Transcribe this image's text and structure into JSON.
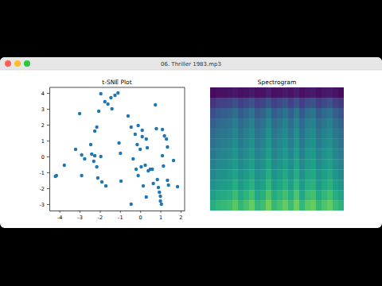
{
  "window": {
    "title": "06. Thriller 1983.mp3"
  },
  "chart_data": [
    {
      "type": "scatter",
      "title": "t-SNE Plot",
      "color": "#1f77b4",
      "marker": "circle",
      "xlim": [
        -4.5,
        2.2
      ],
      "ylim": [
        -3.4,
        4.35
      ],
      "xticks": [
        -4,
        -3,
        -2,
        -1,
        0,
        1,
        2
      ],
      "yticks": [
        -3,
        -2,
        -1,
        0,
        1,
        2,
        3,
        4
      ],
      "x": [
        -4.2,
        -4.15,
        -3.76,
        -3.2,
        -3.0,
        -2.9,
        -2.9,
        -2.75,
        -2.45,
        -2.4,
        -2.3,
        -2.25,
        -2.15,
        -2.25,
        -2.15,
        -2.1,
        -2.05,
        -1.95,
        -1.95,
        -1.9,
        -1.75,
        -1.7,
        -1.6,
        -1.45,
        -1.4,
        -1.25,
        -1.1,
        -1.05,
        -0.98,
        -0.95,
        -0.6,
        -0.45,
        -0.45,
        -0.35,
        -0.25,
        -0.2,
        -0.15,
        -0.1,
        -0.1,
        0,
        0.05,
        0.1,
        0.1,
        0.15,
        0.25,
        0.3,
        0.3,
        0.35,
        0.4,
        0.5,
        0.6,
        0.65,
        0.75,
        0.8,
        0.85,
        0.9,
        0.95,
        1.0,
        1.0,
        1.05,
        1.1,
        1.15,
        1.2,
        1.3,
        1.35,
        1.35,
        1.4,
        1.65,
        1.85,
        1.1
      ],
      "values": [
        -1.25,
        -1.2,
        -0.55,
        0.45,
        2.7,
        0.1,
        -1.2,
        -0.15,
        0.75,
        0.15,
        -0.3,
        1.6,
        1.85,
        0.05,
        -0.65,
        -1.35,
        2.85,
        3.95,
        0,
        -1.6,
        3.45,
        -1.85,
        3.3,
        3.7,
        3.0,
        3.85,
        4.0,
        0.85,
        0.2,
        -1.55,
        2.55,
        1.85,
        -3.0,
        -0.15,
        1.4,
        -0.8,
        0.75,
        1.95,
        -1.2,
        0.45,
        -0.65,
        1.65,
        1.25,
        -1.85,
        -0.55,
        1.1,
        -2.55,
        0.55,
        -0.9,
        -0.8,
        -0.8,
        -1.7,
        3.25,
        1.75,
        -1.45,
        -1.95,
        -2.25,
        -2.5,
        -2.8,
        -3.0,
        0.05,
        -0.6,
        1.3,
        1.1,
        0.6,
        -1.5,
        -1.8,
        -0.25,
        -1.9,
        1.7
      ]
    },
    {
      "type": "heatmap",
      "title": "Spectrogram",
      "color": "viridis",
      "tick_labels": false,
      "zlim": [
        0,
        1
      ],
      "cells": [
        [
          0.03,
          0.04,
          0.04,
          0.05,
          0.06,
          0.04,
          0.05,
          0.07,
          0.04,
          0.05,
          0.08,
          0.04,
          0.05,
          0.07,
          0.05,
          0.08,
          0.04,
          0.06,
          0.07,
          0.04,
          0.06,
          0.07,
          0.05,
          0.03
        ],
        [
          0.15,
          0.18,
          0.19,
          0.2,
          0.24,
          0.18,
          0.22,
          0.25,
          0.18,
          0.2,
          0.26,
          0.19,
          0.22,
          0.25,
          0.19,
          0.26,
          0.18,
          0.24,
          0.25,
          0.18,
          0.22,
          0.25,
          0.19,
          0.17
        ],
        [
          0.24,
          0.28,
          0.29,
          0.31,
          0.36,
          0.28,
          0.33,
          0.38,
          0.28,
          0.31,
          0.4,
          0.29,
          0.33,
          0.38,
          0.3,
          0.4,
          0.28,
          0.36,
          0.38,
          0.28,
          0.34,
          0.38,
          0.3,
          0.26
        ],
        [
          0.3,
          0.34,
          0.35,
          0.37,
          0.42,
          0.34,
          0.39,
          0.44,
          0.34,
          0.37,
          0.46,
          0.35,
          0.39,
          0.44,
          0.36,
          0.46,
          0.34,
          0.42,
          0.44,
          0.34,
          0.4,
          0.44,
          0.36,
          0.32
        ],
        [
          0.34,
          0.38,
          0.39,
          0.41,
          0.46,
          0.38,
          0.43,
          0.48,
          0.38,
          0.41,
          0.5,
          0.39,
          0.43,
          0.48,
          0.4,
          0.5,
          0.38,
          0.46,
          0.48,
          0.38,
          0.44,
          0.48,
          0.4,
          0.36
        ],
        [
          0.37,
          0.41,
          0.42,
          0.44,
          0.49,
          0.41,
          0.46,
          0.51,
          0.41,
          0.44,
          0.53,
          0.42,
          0.46,
          0.51,
          0.43,
          0.53,
          0.41,
          0.49,
          0.51,
          0.41,
          0.47,
          0.51,
          0.43,
          0.39
        ],
        [
          0.4,
          0.44,
          0.45,
          0.47,
          0.52,
          0.44,
          0.49,
          0.54,
          0.44,
          0.47,
          0.56,
          0.45,
          0.49,
          0.54,
          0.46,
          0.56,
          0.44,
          0.52,
          0.54,
          0.44,
          0.5,
          0.54,
          0.46,
          0.42
        ],
        [
          0.43,
          0.47,
          0.48,
          0.5,
          0.55,
          0.47,
          0.52,
          0.57,
          0.47,
          0.5,
          0.59,
          0.48,
          0.52,
          0.57,
          0.49,
          0.59,
          0.47,
          0.55,
          0.57,
          0.47,
          0.53,
          0.57,
          0.49,
          0.45
        ],
        [
          0.46,
          0.5,
          0.51,
          0.53,
          0.58,
          0.5,
          0.55,
          0.6,
          0.5,
          0.53,
          0.62,
          0.51,
          0.55,
          0.6,
          0.52,
          0.62,
          0.5,
          0.58,
          0.6,
          0.5,
          0.56,
          0.6,
          0.52,
          0.48
        ],
        [
          0.5,
          0.54,
          0.55,
          0.57,
          0.62,
          0.54,
          0.59,
          0.64,
          0.54,
          0.57,
          0.66,
          0.55,
          0.59,
          0.64,
          0.56,
          0.66,
          0.54,
          0.62,
          0.64,
          0.54,
          0.6,
          0.64,
          0.56,
          0.52
        ],
        [
          0.56,
          0.6,
          0.61,
          0.63,
          0.68,
          0.6,
          0.65,
          0.7,
          0.6,
          0.63,
          0.72,
          0.61,
          0.65,
          0.7,
          0.62,
          0.72,
          0.6,
          0.68,
          0.7,
          0.6,
          0.66,
          0.7,
          0.62,
          0.58
        ],
        [
          0.62,
          0.66,
          0.67,
          0.69,
          0.74,
          0.66,
          0.71,
          0.76,
          0.66,
          0.69,
          0.78,
          0.67,
          0.71,
          0.76,
          0.68,
          0.78,
          0.66,
          0.74,
          0.76,
          0.66,
          0.72,
          0.76,
          0.68,
          0.64
        ]
      ]
    }
  ]
}
